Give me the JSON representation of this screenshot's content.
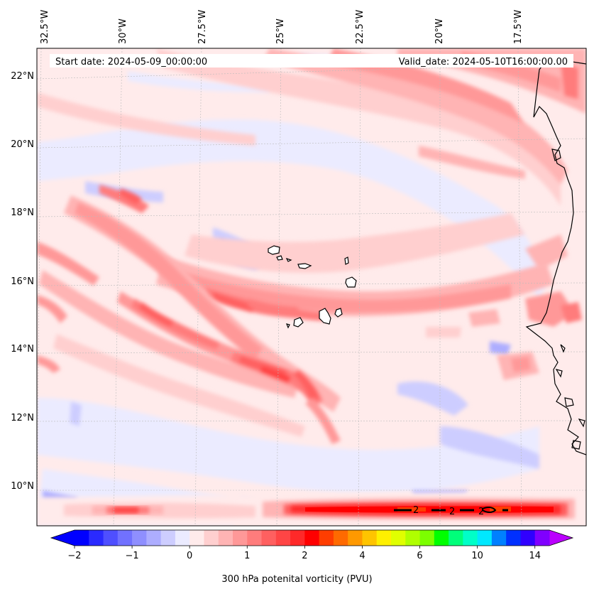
{
  "map": {
    "start_label": "Start date: 2024-05-09_00:00:00",
    "valid_label": "Valid_date: 2024-05-10T16:00:00.00",
    "lon_labels": [
      "32.5°W",
      "30°W",
      "27.5°W",
      "25°W",
      "22.5°W",
      "20°W",
      "17.5°W"
    ],
    "lat_labels": [
      "22°N",
      "20°N",
      "18°N",
      "16°N",
      "14°N",
      "12°N",
      "10°N"
    ],
    "contour_label": "2"
  },
  "colorbar": {
    "title": "300 hPa potenital vorticity (PVU)",
    "tick_labels": [
      "−2",
      "−1",
      "0",
      "1",
      "2",
      "4",
      "6",
      "10",
      "14"
    ],
    "tick_levels": [
      -2,
      -1,
      0,
      1,
      2,
      4,
      6,
      10,
      14
    ],
    "levels": [
      -2,
      -1.75,
      -1.5,
      -1.25,
      -1,
      -0.75,
      -0.5,
      -0.25,
      0,
      0.25,
      0.5,
      0.75,
      1,
      1.25,
      1.5,
      1.75,
      2,
      2.5,
      3,
      3.5,
      4,
      4.5,
      5,
      5.5,
      6,
      7,
      8,
      9,
      10,
      11,
      12,
      13,
      14,
      15
    ],
    "colors": [
      "#0000ff",
      "#2a2aff",
      "#4f4fff",
      "#7171ff",
      "#8f8fff",
      "#adadff",
      "#cdcdff",
      "#ebebff",
      "#ffebeb",
      "#ffcfcf",
      "#ffb4b4",
      "#ff9898",
      "#ff7c7c",
      "#ff6060",
      "#ff4545",
      "#ff2929",
      "#ff0000",
      "#ff3d00",
      "#ff6a00",
      "#ff9900",
      "#ffc400",
      "#fff000",
      "#e0ff00",
      "#b0ff00",
      "#7cff00",
      "#00ff00",
      "#00ff7a",
      "#00ffc8",
      "#00e8ff",
      "#0080ff",
      "#0030ff",
      "#3000ff",
      "#8000ff"
    ],
    "under_color": "#0000ff",
    "over_color": "#bb00ff"
  }
}
